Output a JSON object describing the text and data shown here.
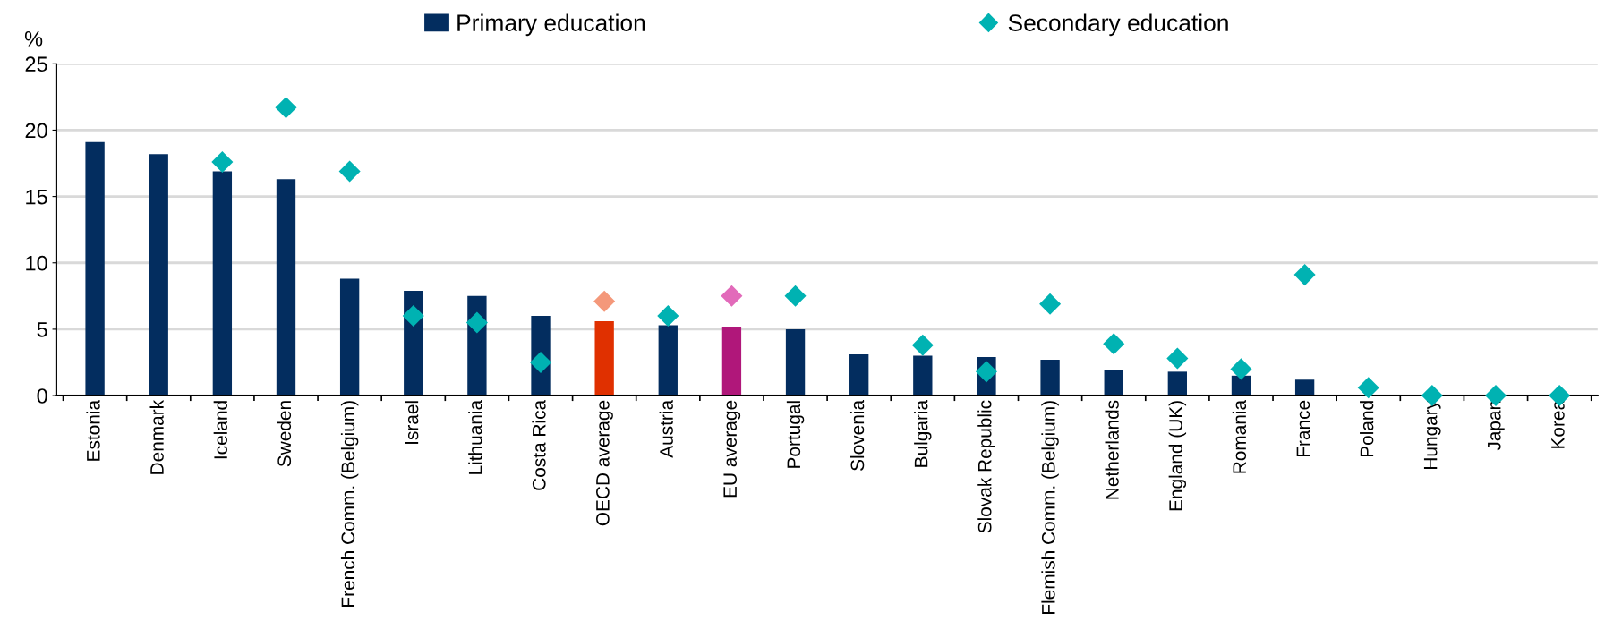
{
  "chart_data": {
    "type": "bar",
    "ylabel": "%",
    "categories": [
      "Estonia",
      "Denmark",
      "Iceland",
      "Sweden",
      "French Comm. (Belgium)",
      "Israel",
      "Lithuania",
      "Costa Rica",
      "OECD average",
      "Austria",
      "EU average",
      "Portugal",
      "Slovenia",
      "Bulgaria",
      "Slovak Republic",
      "Flemish Comm. (Belgium)",
      "Netherlands",
      "England (UK)",
      "Romania",
      "France",
      "Poland",
      "Hungary",
      "Japan",
      "Korea"
    ],
    "series": [
      {
        "name": "Primary education",
        "color": "#032d5f",
        "colors": [
          "#032d5f",
          "#032d5f",
          "#032d5f",
          "#032d5f",
          "#032d5f",
          "#032d5f",
          "#032d5f",
          "#032d5f",
          "#e03000",
          "#032d5f",
          "#b0177a",
          "#032d5f",
          "#032d5f",
          "#032d5f",
          "#032d5f",
          "#032d5f",
          "#032d5f",
          "#032d5f",
          "#032d5f",
          "#032d5f",
          "#032d5f",
          "#032d5f",
          "#032d5f",
          "#032d5f"
        ],
        "values": [
          19.1,
          18.2,
          16.9,
          16.3,
          8.8,
          7.9,
          7.5,
          6.0,
          5.6,
          5.3,
          5.2,
          5.0,
          3.1,
          3.0,
          2.9,
          2.7,
          1.9,
          1.8,
          1.5,
          1.2,
          null,
          null,
          null,
          null
        ]
      },
      {
        "name": "Secondary education",
        "type": "scatter",
        "marker": "diamond",
        "color": "#00b2b2",
        "colors": [
          "#00b2b2",
          "#00b2b2",
          "#00b2b2",
          "#00b2b2",
          "#00b2b2",
          "#00b2b2",
          "#00b2b2",
          "#00b2b2",
          "#f4987a",
          "#00b2b2",
          "#e26aba",
          "#00b2b2",
          "#00b2b2",
          "#00b2b2",
          "#00b2b2",
          "#00b2b2",
          "#00b2b2",
          "#00b2b2",
          "#00b2b2",
          "#00b2b2",
          "#00b2b2",
          "#00b2b2",
          "#00b2b2",
          "#00b2b2"
        ],
        "values": [
          null,
          null,
          17.6,
          21.7,
          16.9,
          6.0,
          5.5,
          2.5,
          7.1,
          6.0,
          7.5,
          7.5,
          null,
          3.8,
          1.8,
          6.9,
          3.9,
          2.8,
          2.0,
          9.1,
          0.6,
          0,
          0,
          0
        ]
      }
    ],
    "ylim": [
      0,
      25
    ],
    "yticks": [
      0,
      5,
      10,
      15,
      20,
      25
    ],
    "grid": "y",
    "legend": "top"
  }
}
